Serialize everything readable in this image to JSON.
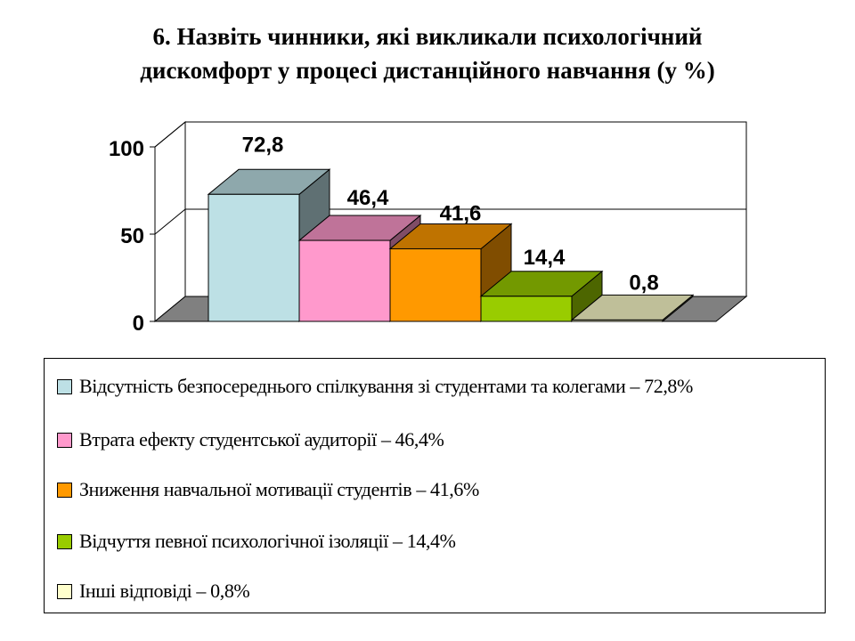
{
  "title": {
    "line1": "6. Назвіть чинники, які викликали психологічний",
    "line2": "дискомфорт у процесі дистанційного навчання (у %)"
  },
  "chart_data": {
    "type": "bar",
    "categories": [
      ""
    ],
    "series": [
      {
        "name": "Відсутність безпосереднього спілкування зі студентами та колегами – 72,8%",
        "value": 72.8,
        "label": "72,8",
        "color": "#bde0e5"
      },
      {
        "name": "Втрата ефекту студентської аудиторії – 46,4%",
        "value": 46.4,
        "label": "46,4",
        "color": "#ff99cc"
      },
      {
        "name": "Зниження навчальної мотивації студентів – 41,6%",
        "value": 41.6,
        "label": "41,6",
        "color": "#ff9900"
      },
      {
        "name": "Відчуття певної психологічної ізоляції – 14,4%",
        "value": 14.4,
        "label": "14,4",
        "color": "#99cc00"
      },
      {
        "name": "Інші відповіді – 0,8%",
        "value": 0.8,
        "label": "0,8",
        "color": "#ffffcc"
      }
    ],
    "ylim": [
      0,
      100
    ],
    "yticks": [
      {
        "value": 0,
        "label": "0"
      },
      {
        "value": 50,
        "label": "50"
      },
      {
        "value": 100,
        "label": "100"
      }
    ],
    "three_d": true,
    "grid": true,
    "floor_color": "#808080",
    "legend_position": "bottom"
  }
}
